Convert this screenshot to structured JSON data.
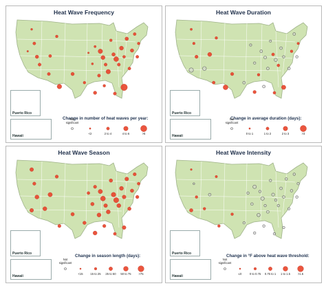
{
  "colors": {
    "land": "#cfe3b2",
    "state_line": "#ffffff",
    "outline": "#9fb28a",
    "dot": "#e8472e",
    "dot_stroke": "#b5301f",
    "ns_fill": "#d4d4d4",
    "ns_stroke": "#666666"
  },
  "insets": {
    "puerto_rico": "Puerto Rico",
    "hawaii": "Hawaii"
  },
  "panels": [
    {
      "title": "Heat Wave Frequency",
      "legend_title": "Change in number of heat waves per year:",
      "legend": [
        {
          "label": "Not significant",
          "ns": true,
          "r": 1.5
        },
        {
          "label": "<2",
          "r": 1.2
        },
        {
          "label": "2 to 4",
          "r": 2.2
        },
        {
          "label": "4 to 6",
          "r": 3.3
        },
        {
          "label": ">6",
          "r": 4.6
        }
      ],
      "dots": [
        [
          0.12,
          0.12,
          1.5,
          false
        ],
        [
          0.14,
          0.3,
          2.2,
          false
        ],
        [
          0.16,
          0.47,
          2.5,
          false
        ],
        [
          0.18,
          0.57,
          2.3,
          false
        ],
        [
          0.25,
          0.69,
          2.3,
          false
        ],
        [
          0.26,
          0.46,
          2.2,
          false
        ],
        [
          0.31,
          0.21,
          2.0,
          false
        ],
        [
          0.33,
          0.85,
          3.4,
          false
        ],
        [
          0.43,
          0.69,
          2.5,
          false
        ],
        [
          0.52,
          0.8,
          2.0,
          false
        ],
        [
          0.55,
          0.42,
          1.3,
          false
        ],
        [
          0.58,
          0.56,
          1.6,
          false
        ],
        [
          0.6,
          0.34,
          1.7,
          false
        ],
        [
          0.63,
          0.71,
          2.3,
          false
        ],
        [
          0.64,
          0.4,
          3.3,
          false
        ],
        [
          0.66,
          0.48,
          3.0,
          false
        ],
        [
          0.68,
          0.57,
          2.3,
          false
        ],
        [
          0.7,
          0.66,
          3.3,
          false
        ],
        [
          0.72,
          0.26,
          2.0,
          false
        ],
        [
          0.74,
          0.44,
          2.6,
          false
        ],
        [
          0.76,
          0.5,
          3.6,
          false
        ],
        [
          0.78,
          0.57,
          2.3,
          false
        ],
        [
          0.8,
          0.36,
          3.0,
          false
        ],
        [
          0.82,
          0.47,
          2.1,
          false
        ],
        [
          0.84,
          0.24,
          2.6,
          false
        ],
        [
          0.86,
          0.62,
          2.2,
          false
        ],
        [
          0.88,
          0.39,
          2.6,
          false
        ],
        [
          0.9,
          0.18,
          2.2,
          false
        ],
        [
          0.92,
          0.47,
          2.2,
          false
        ],
        [
          0.93,
          0.3,
          2.0,
          false
        ],
        [
          0.82,
          0.86,
          4.8,
          false
        ],
        [
          0.75,
          0.94,
          2.3,
          false
        ],
        [
          0.67,
          0.84,
          2.0,
          false
        ],
        [
          0.6,
          0.93,
          2.5,
          false
        ],
        [
          0.09,
          0.4,
          1.3,
          false
        ]
      ],
      "pr_dot": 4.6,
      "hi_dot": 0
    },
    {
      "title": "Heat Wave Duration",
      "legend_title": "Change in average duration (days):",
      "legend": [
        {
          "label": "Not significant",
          "ns": true,
          "r": 1.5
        },
        {
          "label": "0 to 1",
          "r": 1.2
        },
        {
          "label": "1 to 2",
          "r": 2.2
        },
        {
          "label": "2 to 3",
          "r": 3.3
        },
        {
          "label": ">3",
          "r": 4.6
        }
      ],
      "dots": [
        [
          0.12,
          0.12,
          1.7,
          false
        ],
        [
          0.14,
          0.3,
          1.9,
          false
        ],
        [
          0.16,
          0.47,
          2.4,
          false
        ],
        [
          0.12,
          0.64,
          3.2,
          true
        ],
        [
          0.22,
          0.62,
          2.8,
          true
        ],
        [
          0.26,
          0.44,
          3.0,
          false
        ],
        [
          0.31,
          0.23,
          2.0,
          false
        ],
        [
          0.29,
          0.8,
          2.2,
          false
        ],
        [
          0.38,
          0.86,
          3.6,
          false
        ],
        [
          0.43,
          0.69,
          2.4,
          false
        ],
        [
          0.52,
          0.8,
          2.0,
          true
        ],
        [
          0.57,
          0.32,
          1.7,
          true
        ],
        [
          0.6,
          0.55,
          1.8,
          true
        ],
        [
          0.63,
          0.7,
          2.0,
          false
        ],
        [
          0.65,
          0.4,
          2.0,
          true
        ],
        [
          0.68,
          0.48,
          2.1,
          true
        ],
        [
          0.7,
          0.62,
          2.0,
          true
        ],
        [
          0.72,
          0.27,
          1.6,
          true
        ],
        [
          0.74,
          0.44,
          2.2,
          false
        ],
        [
          0.76,
          0.51,
          2.3,
          true
        ],
        [
          0.78,
          0.58,
          2.1,
          false
        ],
        [
          0.8,
          0.36,
          2.0,
          true
        ],
        [
          0.82,
          0.47,
          1.8,
          true
        ],
        [
          0.86,
          0.62,
          2.0,
          true
        ],
        [
          0.88,
          0.4,
          2.0,
          false
        ],
        [
          0.9,
          0.18,
          2.0,
          true
        ],
        [
          0.92,
          0.47,
          1.8,
          true
        ],
        [
          0.93,
          0.3,
          1.8,
          false
        ],
        [
          0.82,
          0.86,
          3.2,
          false
        ],
        [
          0.75,
          0.93,
          2.1,
          false
        ],
        [
          0.6,
          0.92,
          2.4,
          false
        ],
        [
          0.67,
          0.85,
          2.0,
          true
        ]
      ],
      "pr_dot": 4.8,
      "hi_dot": 2.0
    },
    {
      "title": "Heat Wave Season",
      "legend_title": "Change in season length (days):",
      "legend": [
        {
          "label": "Not significant",
          "ns": true,
          "r": 1.5
        },
        {
          "label": "<15",
          "r": 1.1
        },
        {
          "label": "15 to 25",
          "r": 1.9
        },
        {
          "label": "25 to 50",
          "r": 2.7
        },
        {
          "label": "50 to 75",
          "r": 3.5
        },
        {
          "label": ">75",
          "r": 4.4
        }
      ],
      "dots": [
        [
          0.12,
          0.12,
          2.8,
          false
        ],
        [
          0.14,
          0.3,
          2.4,
          false
        ],
        [
          0.16,
          0.47,
          3.0,
          false
        ],
        [
          0.12,
          0.64,
          2.8,
          false
        ],
        [
          0.22,
          0.62,
          3.0,
          false
        ],
        [
          0.26,
          0.44,
          3.2,
          false
        ],
        [
          0.31,
          0.21,
          2.4,
          false
        ],
        [
          0.33,
          0.84,
          2.4,
          false
        ],
        [
          0.43,
          0.69,
          2.6,
          false
        ],
        [
          0.52,
          0.8,
          2.5,
          false
        ],
        [
          0.55,
          0.42,
          2.2,
          false
        ],
        [
          0.58,
          0.56,
          2.6,
          false
        ],
        [
          0.6,
          0.34,
          2.4,
          false
        ],
        [
          0.63,
          0.7,
          3.0,
          false
        ],
        [
          0.64,
          0.4,
          3.2,
          false
        ],
        [
          0.66,
          0.49,
          3.6,
          false
        ],
        [
          0.68,
          0.58,
          2.8,
          false
        ],
        [
          0.7,
          0.66,
          3.0,
          false
        ],
        [
          0.72,
          0.26,
          2.6,
          false
        ],
        [
          0.74,
          0.44,
          3.4,
          false
        ],
        [
          0.76,
          0.51,
          3.8,
          false
        ],
        [
          0.78,
          0.58,
          3.0,
          false
        ],
        [
          0.8,
          0.36,
          3.0,
          false
        ],
        [
          0.82,
          0.47,
          2.8,
          false
        ],
        [
          0.84,
          0.24,
          2.8,
          false
        ],
        [
          0.86,
          0.62,
          2.6,
          false
        ],
        [
          0.88,
          0.39,
          2.6,
          false
        ],
        [
          0.9,
          0.18,
          2.4,
          false
        ],
        [
          0.92,
          0.47,
          2.4,
          false
        ],
        [
          0.93,
          0.3,
          2.2,
          false
        ],
        [
          0.82,
          0.86,
          2.8,
          false
        ],
        [
          0.75,
          0.94,
          2.2,
          false
        ],
        [
          0.67,
          0.84,
          2.4,
          false
        ],
        [
          0.6,
          0.93,
          3.0,
          false
        ]
      ],
      "pr_dot": 4.6,
      "hi_dot": 1.2
    },
    {
      "title": "Heat Wave Intensity",
      "legend_title": "Change in °F above heat wave threshold:",
      "legend": [
        {
          "label": "Not significant",
          "ns": true,
          "r": 1.5
        },
        {
          "label": "≤0",
          "r": 1.1
        },
        {
          "label": "0 to 0.75",
          "r": 1.9
        },
        {
          "label": "0.75 to 1",
          "r": 2.7
        },
        {
          "label": "1 to 1.5",
          "r": 3.5
        },
        {
          "label": ">1.5",
          "r": 4.4
        }
      ],
      "dots": [
        [
          0.12,
          0.12,
          1.4,
          false
        ],
        [
          0.14,
          0.3,
          1.3,
          true
        ],
        [
          0.16,
          0.47,
          2.0,
          false
        ],
        [
          0.12,
          0.64,
          2.6,
          false
        ],
        [
          0.22,
          0.62,
          2.0,
          false
        ],
        [
          0.26,
          0.44,
          2.0,
          true
        ],
        [
          0.31,
          0.21,
          1.8,
          false
        ],
        [
          0.33,
          0.84,
          2.0,
          false
        ],
        [
          0.43,
          0.69,
          2.0,
          false
        ],
        [
          0.52,
          0.8,
          1.8,
          true
        ],
        [
          0.55,
          0.42,
          1.8,
          true
        ],
        [
          0.58,
          0.56,
          1.9,
          true
        ],
        [
          0.6,
          0.34,
          2.6,
          true
        ],
        [
          0.63,
          0.7,
          2.4,
          true
        ],
        [
          0.64,
          0.4,
          1.8,
          true
        ],
        [
          0.66,
          0.49,
          2.6,
          true
        ],
        [
          0.68,
          0.58,
          1.8,
          true
        ],
        [
          0.7,
          0.66,
          2.0,
          true
        ],
        [
          0.72,
          0.26,
          1.8,
          true
        ],
        [
          0.74,
          0.44,
          2.2,
          true
        ],
        [
          0.76,
          0.51,
          1.8,
          true
        ],
        [
          0.78,
          0.58,
          1.8,
          true
        ],
        [
          0.8,
          0.36,
          2.0,
          true
        ],
        [
          0.82,
          0.47,
          1.9,
          true
        ],
        [
          0.84,
          0.24,
          1.8,
          true
        ],
        [
          0.86,
          0.62,
          1.8,
          true
        ],
        [
          0.88,
          0.39,
          1.9,
          true
        ],
        [
          0.9,
          0.18,
          1.8,
          true
        ],
        [
          0.92,
          0.47,
          1.8,
          true
        ],
        [
          0.93,
          0.3,
          1.8,
          true
        ],
        [
          0.82,
          0.86,
          1.8,
          true
        ],
        [
          0.75,
          0.94,
          1.8,
          true
        ],
        [
          0.67,
          0.84,
          1.8,
          true
        ],
        [
          0.6,
          0.93,
          1.8,
          true
        ]
      ],
      "pr_dot": 1.8,
      "hi_dot": 0
    }
  ]
}
